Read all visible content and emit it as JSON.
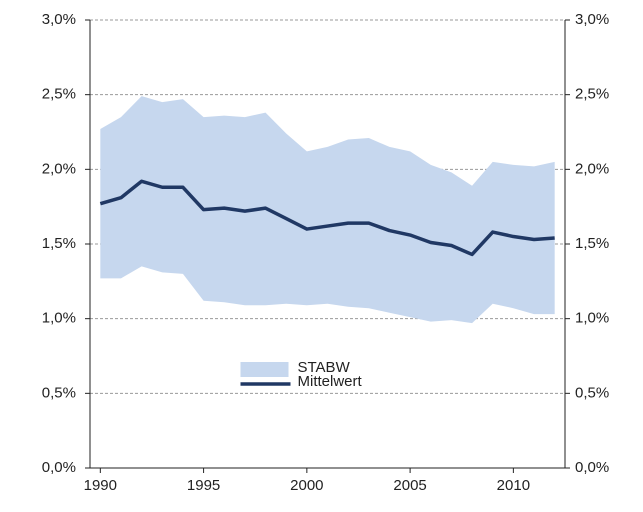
{
  "chart_data": {
    "type": "band-line",
    "x": [
      1990,
      1991,
      1992,
      1993,
      1994,
      1995,
      1996,
      1997,
      1998,
      1999,
      2000,
      2001,
      2002,
      2003,
      2004,
      2005,
      2006,
      2007,
      2008,
      2009,
      2010,
      2011,
      2012
    ],
    "series": [
      {
        "name": "STABW",
        "color": "#c6d7ee",
        "upper": [
          2.27,
          2.35,
          2.49,
          2.45,
          2.47,
          2.35,
          2.36,
          2.35,
          2.38,
          2.24,
          2.12,
          2.15,
          2.2,
          2.21,
          2.15,
          2.12,
          2.03,
          1.98,
          1.89,
          2.05,
          2.03,
          2.02,
          2.05
        ],
        "lower": [
          1.27,
          1.27,
          1.35,
          1.31,
          1.3,
          1.12,
          1.11,
          1.09,
          1.09,
          1.1,
          1.09,
          1.1,
          1.08,
          1.07,
          1.04,
          1.01,
          0.98,
          0.99,
          0.97,
          1.1,
          1.07,
          1.03,
          1.03
        ]
      },
      {
        "name": "Mittelwert",
        "color": "#203864",
        "values": [
          1.77,
          1.81,
          1.92,
          1.88,
          1.88,
          1.73,
          1.74,
          1.72,
          1.74,
          1.67,
          1.6,
          1.62,
          1.64,
          1.64,
          1.59,
          1.56,
          1.51,
          1.49,
          1.43,
          1.58,
          1.55,
          1.53,
          1.54
        ]
      }
    ],
    "xlim": [
      1989.5,
      2012.5
    ],
    "xticks": [
      1990,
      1995,
      2000,
      2005,
      2010
    ],
    "ylim": [
      0,
      3
    ],
    "yticks": [
      {
        "value": 0,
        "label": "0,0%"
      },
      {
        "value": 0.5,
        "label": "0,5%"
      },
      {
        "value": 1,
        "label": "1,0%"
      },
      {
        "value": 1.5,
        "label": "1,5%"
      },
      {
        "value": 2,
        "label": "2,0%"
      },
      {
        "value": 2.5,
        "label": "2,5%"
      },
      {
        "value": 3,
        "label": "3,0%"
      }
    ],
    "y2lim": [
      0,
      3
    ],
    "y2ticks": [
      {
        "value": 0,
        "label": "0,0%"
      },
      {
        "value": 0.5,
        "label": "0,5%"
      },
      {
        "value": 1,
        "label": "1,0%"
      },
      {
        "value": 1.5,
        "label": "1,5%"
      },
      {
        "value": 2,
        "label": "2,0%"
      },
      {
        "value": 2.5,
        "label": "2,5%"
      },
      {
        "value": 3,
        "label": "3,0%"
      }
    ],
    "grid": true,
    "legend": "bottom-center"
  }
}
